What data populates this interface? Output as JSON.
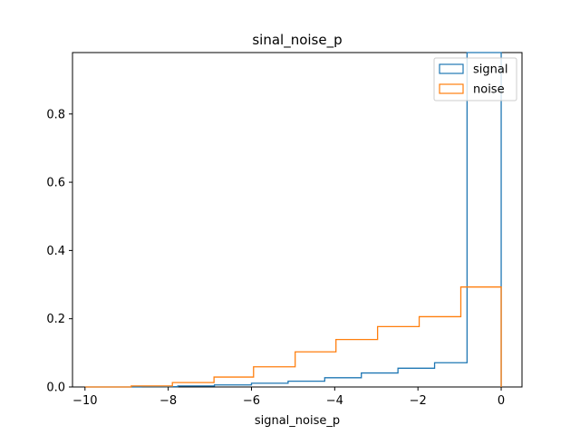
{
  "chart_data": {
    "type": "histogram-step",
    "title": "sinal_noise_p",
    "xlabel": "signal_noise_p",
    "ylabel": "",
    "xlim": [
      -10.3,
      0.5
    ],
    "ylim": [
      0,
      0.98
    ],
    "xticks": [
      -10,
      -8,
      -6,
      -4,
      -2,
      0
    ],
    "xtick_labels": [
      "−10",
      "−8",
      "−6",
      "−4",
      "−2",
      "0"
    ],
    "yticks": [
      0.0,
      0.2,
      0.4,
      0.6,
      0.8
    ],
    "ytick_labels": [
      "0.0",
      "0.2",
      "0.4",
      "0.6",
      "0.8"
    ],
    "grid": false,
    "legend_position": "top-right",
    "series": [
      {
        "name": "signal",
        "color": "#1f77b4",
        "bin_edges": [
          -10.0,
          -9.53,
          -8.65,
          -7.77,
          -6.89,
          -6.0,
          -5.12,
          -4.24,
          -3.36,
          -2.48,
          -1.6,
          -0.82,
          0.0
        ],
        "values": [
          0.0,
          0.0,
          0.001,
          0.003,
          0.006,
          0.011,
          0.017,
          0.027,
          0.041,
          0.055,
          0.071,
          0.98
        ]
      },
      {
        "name": "noise",
        "color": "#ff7f0e",
        "bin_edges": [
          -10.0,
          -8.89,
          -7.9,
          -6.9,
          -5.95,
          -4.95,
          -3.97,
          -2.97,
          -1.97,
          -0.97,
          0.0
        ],
        "values": [
          0.0,
          0.003,
          0.013,
          0.029,
          0.059,
          0.103,
          0.139,
          0.177,
          0.206,
          0.293
        ]
      }
    ]
  }
}
